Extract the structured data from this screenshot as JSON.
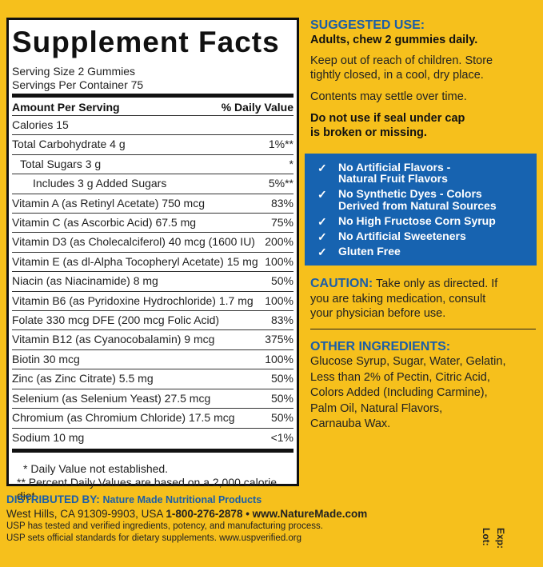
{
  "facts": {
    "title": "Supplement Facts",
    "serving_size": "Serving Size 2 Gummies",
    "servings_per_container": "Servings Per Container 75",
    "header": [
      "Amount Per Serving",
      "% Daily Value"
    ],
    "rows": [
      [
        "Calories  15",
        ""
      ],
      [
        "Total Carbohydrate  4 g",
        "1%**"
      ],
      [
        "Total Sugars  3 g",
        "*"
      ],
      [
        "Includes 3 g Added Sugars",
        "5%**"
      ],
      [
        "Vitamin A (as Retinyl Acetate) 750 mcg",
        "83%"
      ],
      [
        "Vitamin C (as Ascorbic Acid) 67.5 mg",
        "75%"
      ],
      [
        "Vitamin D3 (as Cholecalciferol) 40 mcg (1600 IU)",
        "200%"
      ],
      [
        "Vitamin E (as dl-Alpha Tocopheryl Acetate) 15 mg",
        "100%"
      ],
      [
        "Niacin (as Niacinamide) 8 mg",
        "50%"
      ],
      [
        "Vitamin B6 (as Pyridoxine Hydrochloride) 1.7 mg",
        "100%"
      ],
      [
        "Folate 330 mcg DFE (200 mcg Folic Acid)",
        "83%"
      ],
      [
        "Vitamin B12 (as Cyanocobalamin) 9 mcg",
        "375%"
      ],
      [
        "Biotin 30 mcg",
        "100%"
      ],
      [
        "Zinc (as Zinc Citrate) 5.5 mg",
        "50%"
      ],
      [
        "Selenium (as Selenium Yeast) 27.5 mcg",
        "50%"
      ],
      [
        "Chromium (as Chromium Chloride) 17.5 mcg",
        "50%"
      ],
      [
        "Sodium 10 mg",
        "<1%"
      ]
    ],
    "footnotes": [
      "* Daily Value not established.",
      "** Percent Daily Values are based on a 2,000 calorie diet."
    ]
  },
  "distributor": {
    "label": "DISTRIBUTED BY:",
    "name": "Nature Made Nutritional Products",
    "address": "West Hills, CA 91309-9903, USA",
    "contact": "1-800-276-2878 • www.NatureMade.com",
    "usp": [
      "USP has tested and verified ingredients, potency, and manufacturing process.",
      "USP sets official standards for dietary supplements. www.uspverified.org"
    ],
    "lot": "Lot:",
    "exp": "Exp:"
  },
  "suggested_use": {
    "heading": "SUGGESTED USE:",
    "direction": "Adults, chew 2 gummies daily.",
    "notes": [
      "Keep out of reach of children. Store",
      "tightly closed, in a cool, dry place.",
      "Contents may settle over time."
    ],
    "warning": [
      "Do not use if seal under cap",
      "is broken or missing."
    ]
  },
  "claims": [
    [
      "No Artificial Flavors -",
      "Natural Fruit Flavors"
    ],
    [
      "No Synthetic Dyes - Colors",
      "Derived from Natural Sources"
    ],
    [
      "No High Fructose Corn Syrup"
    ],
    [
      "No Artificial Sweeteners"
    ],
    [
      "Gluten Free"
    ]
  ],
  "check": "✓",
  "caution": {
    "heading": "CAUTION:",
    "lines": [
      "Take only as directed. If",
      "you are taking medication, consult",
      "your physician before use."
    ]
  },
  "other_ingredients": {
    "heading": "OTHER INGREDIENTS:",
    "lines": [
      "Glucose Syrup, Sugar, Water, Gelatin,",
      "Less than 2% of Pectin, Citric Acid,",
      "Colors Added (Including Carmine),",
      "Palm Oil, Natural Flavors,",
      "Carnauba Wax."
    ]
  }
}
